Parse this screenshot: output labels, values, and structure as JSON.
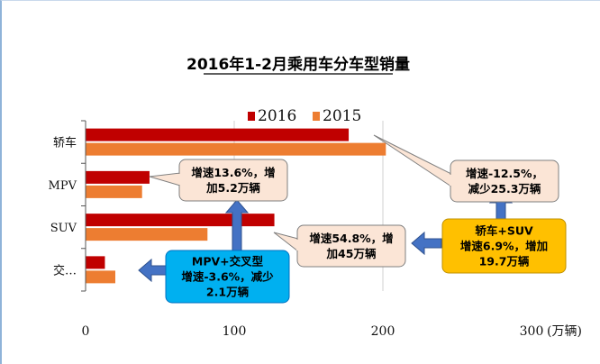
{
  "chart_data": {
    "type": "bar",
    "orientation": "horizontal",
    "title": "2016年1-2月乘用车分车型销量",
    "categories": [
      "轿车",
      "MPV",
      "SUV",
      "交…"
    ],
    "series": [
      {
        "name": "2016",
        "color": "#c00000",
        "values": [
          177,
          43,
          127,
          13
        ]
      },
      {
        "name": "2015",
        "color": "#ed7d31",
        "values": [
          202,
          38,
          82,
          20
        ]
      }
    ],
    "xlim": [
      0,
      300
    ],
    "x_ticks": [
      "0",
      "100",
      "200",
      "300"
    ],
    "x_unit": "(万辆)",
    "legend_position": "top",
    "grid": "vertical",
    "annotations": [
      {
        "lines": [
          "增速13.6%，增",
          "加5.2万辆"
        ],
        "style": "note"
      },
      {
        "lines": [
          "增速-12.5%，",
          "减少25.3万辆"
        ],
        "style": "note"
      },
      {
        "lines": [
          "增速54.8%，增",
          "加45万辆"
        ],
        "style": "note"
      },
      {
        "lines": [
          "MPV+交叉型",
          "增速-3.6%，减少",
          "2.1万辆"
        ],
        "style": "blue"
      },
      {
        "lines": [
          "轿车+SUV",
          "增速6.9%，增加",
          "19.7万辆"
        ],
        "style": "gold"
      }
    ]
  }
}
